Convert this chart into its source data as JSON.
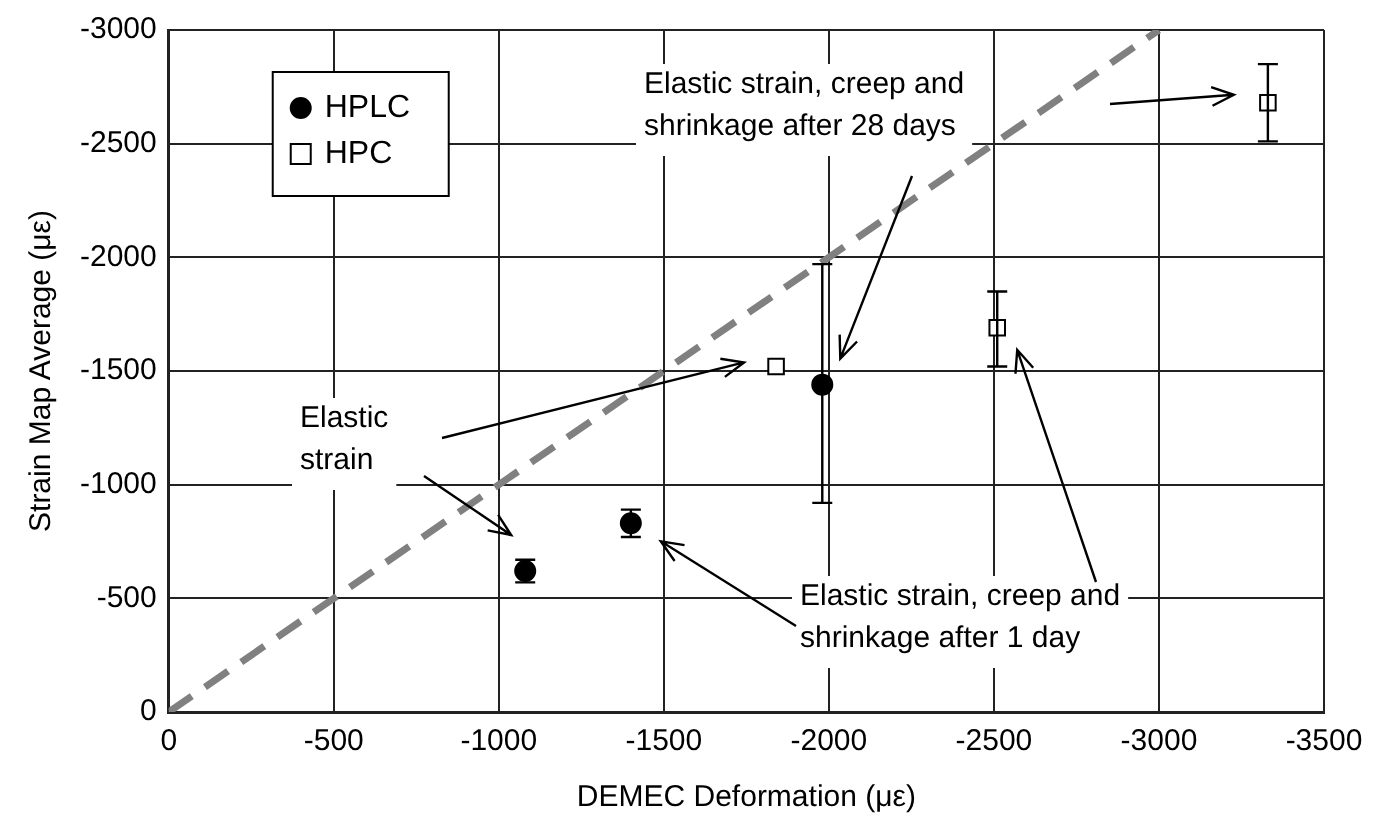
{
  "chart_data": {
    "type": "scatter",
    "xlabel": "DEMEC Deformation (με)",
    "ylabel": "Strain Map Average (με)",
    "xlim": [
      0,
      -3500
    ],
    "xticks": [
      0,
      -500,
      -1000,
      -1500,
      -2000,
      -2500,
      -3000,
      -3500
    ],
    "ylim": [
      0,
      -3000
    ],
    "yticks": [
      0,
      -500,
      -1000,
      -1500,
      -2000,
      -2500,
      -3000
    ],
    "grid": true,
    "legend": "top left",
    "series": [
      {
        "name": "HPLC",
        "color": "#000000",
        "marker": "circle",
        "x": [
          -1080,
          -1400,
          -1980
        ],
        "values": [
          -620,
          -830,
          -1440
        ],
        "errors": [
          50,
          60,
          [
            -1970,
            -920
          ]
        ]
      },
      {
        "name": "HPC",
        "color": "#ffffff",
        "marker": "square",
        "x": [
          -1840,
          -2510,
          -3330
        ],
        "values": [
          -1520,
          -1690,
          -2680
        ],
        "errors": [
          null,
          [
            -1850,
            -1520
          ],
          [
            -2850,
            -2510
          ]
        ]
      },
      {
        "type": "line",
        "color": "#808080",
        "line_style": "dashed",
        "marker": "none",
        "x": [
          0,
          -3000
        ],
        "values": [
          0,
          -3000
        ]
      }
    ],
    "annotations": [
      "Elastic\nstrain",
      "Elastic strain, creep and\nshrinkage after 28 days",
      "Elastic strain, creep and\nshrinkage after 1 day"
    ]
  }
}
